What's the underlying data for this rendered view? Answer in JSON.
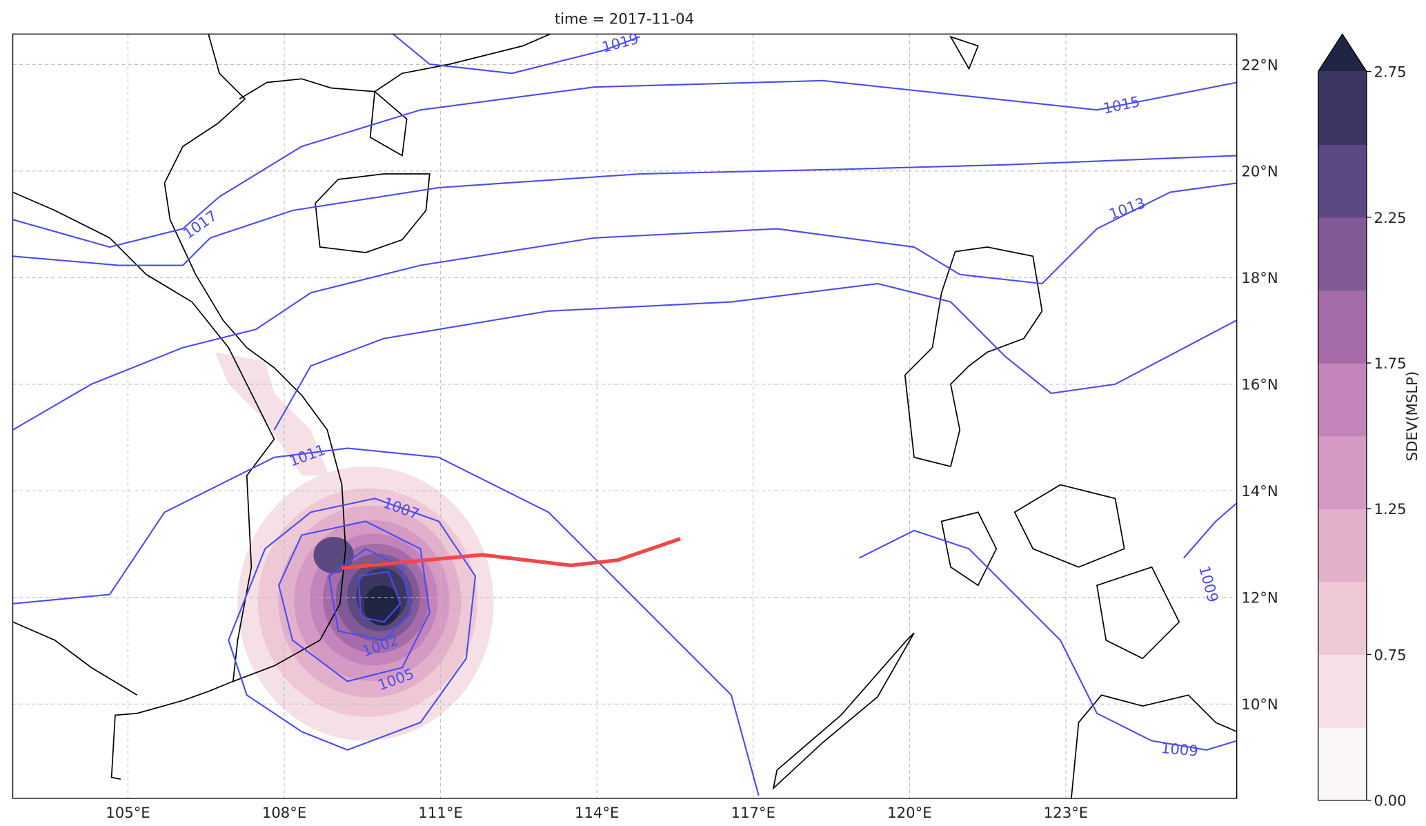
{
  "chart_data": {
    "type": "map",
    "title": "time = 2017-11-04",
    "lonlim": [
      102.79,
      126.28
    ],
    "latlim": [
      8.23,
      22.57
    ],
    "lonticks": [
      {
        "value": 105,
        "label": "105°E"
      },
      {
        "value": 108,
        "label": "108°E"
      },
      {
        "value": 111,
        "label": "111°E"
      },
      {
        "value": 114,
        "label": "114°E"
      },
      {
        "value": 117,
        "label": "117°E"
      },
      {
        "value": 120,
        "label": "120°E"
      },
      {
        "value": 123,
        "label": "123°E"
      }
    ],
    "latticks": [
      {
        "value": 10,
        "label": "10°N"
      },
      {
        "value": 12,
        "label": "12°N"
      },
      {
        "value": 14,
        "label": "14°N"
      },
      {
        "value": 16,
        "label": "16°N"
      },
      {
        "value": 18,
        "label": "18°N"
      },
      {
        "value": 20,
        "label": "20°N"
      },
      {
        "value": 22,
        "label": "22°N"
      }
    ],
    "grid": true,
    "track": {
      "color": "#f04848",
      "lon": [
        109.1,
        111.8,
        113.5,
        114.4,
        115.6
      ],
      "lat": [
        12.55,
        12.8,
        12.6,
        12.7,
        13.1
      ]
    },
    "contour_labels": [
      1019,
      1015,
      1017,
      1013,
      1011,
      1007,
      1002,
      1005,
      1009,
      1009
    ],
    "colorbar": {
      "label": "SDEV(MSLP)",
      "levels": [
        0,
        0.5,
        0.75,
        1,
        1.25,
        1.5,
        1.75,
        2,
        2.25,
        2.5,
        2.75
      ],
      "colors": [
        "#fbf6f7",
        "#f4e0e5",
        "#efc8d6",
        "#e3b0cb",
        "#d59ac3",
        "#c384bc",
        "#a66ca9",
        "#805a96",
        "#5d4981",
        "#3b3762"
      ],
      "extend_color": "#1f2542",
      "ticks": [
        {
          "value": 0,
          "label": "0.00"
        },
        {
          "value": 0.75,
          "label": "0.75"
        },
        {
          "value": 1.25,
          "label": "1.25"
        },
        {
          "value": 1.75,
          "label": "1.75"
        },
        {
          "value": 2.25,
          "label": "2.25"
        },
        {
          "value": 2.75,
          "label": "2.75"
        }
      ]
    }
  }
}
